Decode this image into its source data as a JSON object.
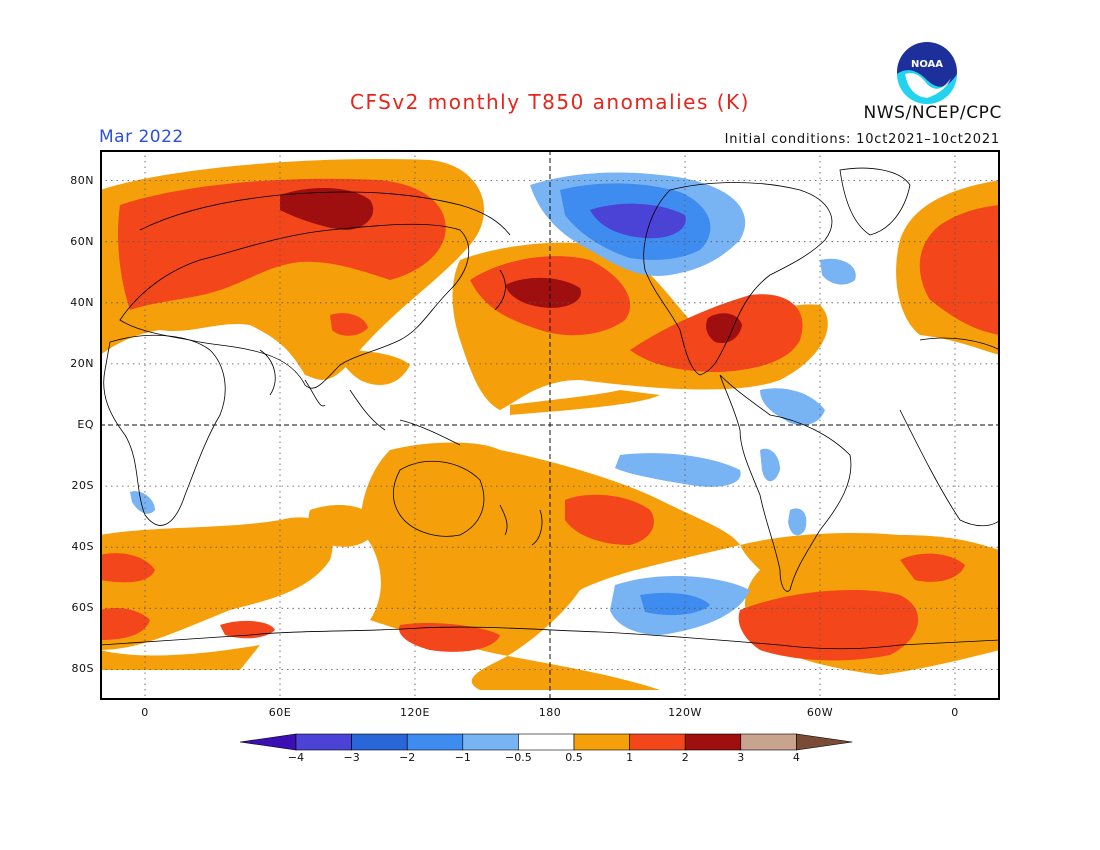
{
  "header": {
    "title": "CFSv2 monthly T850 anomalies (K)",
    "month": "Mar 2022",
    "initial_conditions": "Initial conditions: 10ct2021–10ct2021",
    "org": "NWS/NCEP/CPC",
    "logo_text": "NOAA"
  },
  "map": {
    "projection": "equirectangular",
    "central_longitude": 180,
    "lon_range": [
      -20,
      380
    ],
    "lat_range": [
      -90,
      90
    ],
    "lat_ticks": [
      {
        "lat": 80,
        "label": "80N"
      },
      {
        "lat": 60,
        "label": "60N"
      },
      {
        "lat": 40,
        "label": "40N"
      },
      {
        "lat": 20,
        "label": "20N"
      },
      {
        "lat": 0,
        "label": "EQ"
      },
      {
        "lat": -20,
        "label": "20S"
      },
      {
        "lat": -40,
        "label": "40S"
      },
      {
        "lat": -60,
        "label": "60S"
      },
      {
        "lat": -80,
        "label": "80S"
      }
    ],
    "lon_ticks": [
      {
        "lon": 0,
        "label": "0"
      },
      {
        "lon": 60,
        "label": "60E"
      },
      {
        "lon": 120,
        "label": "120E"
      },
      {
        "lon": 180,
        "label": "180"
      },
      {
        "lon": 240,
        "label": "120W"
      },
      {
        "lon": 300,
        "label": "60W"
      },
      {
        "lon": 360,
        "label": "0"
      }
    ]
  },
  "colorbar": {
    "colors": [
      "#3a10b4",
      "#4b42d6",
      "#2a66d8",
      "#3f8cf0",
      "#78b4f4",
      "#ffffff",
      "#f5a00a",
      "#f3461b",
      "#a00f0f",
      "#c8a38e",
      "#7a4b35"
    ],
    "labels": [
      "−4",
      "−3",
      "−2",
      "−1",
      "−0.5",
      "0.5",
      "1",
      "2",
      "3",
      "4"
    ]
  },
  "colors": {
    "land_outline": "#000000",
    "grid": "#555555"
  }
}
